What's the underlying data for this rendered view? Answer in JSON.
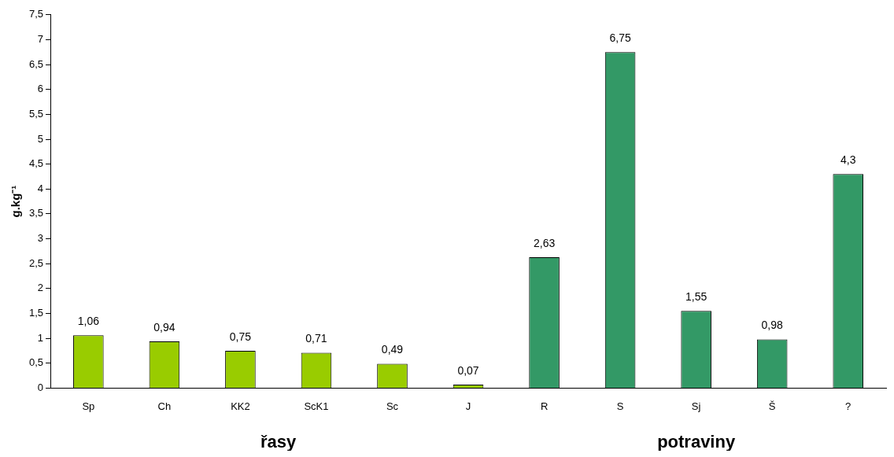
{
  "chart_data": {
    "type": "bar",
    "ylabel": "g.kg⁻¹",
    "categories": [
      "Sp",
      "Ch",
      "KK2",
      "ScK1",
      "Sc",
      "J",
      "R",
      "S",
      "Sj",
      "Š",
      "?"
    ],
    "values": [
      1.06,
      0.94,
      0.75,
      0.71,
      0.49,
      0.07,
      2.63,
      6.75,
      1.55,
      0.98,
      4.3
    ],
    "value_labels": [
      "1,06",
      "0,94",
      "0,75",
      "0,71",
      "0,49",
      "0,07",
      "2,63",
      "6,75",
      "1,55",
      "0,98",
      "4,3"
    ],
    "colors": [
      "#99cc00",
      "#99cc00",
      "#99cc00",
      "#99cc00",
      "#99cc00",
      "#99cc00",
      "#339966",
      "#339966",
      "#339966",
      "#339966",
      "#339966"
    ],
    "ylim": [
      0,
      7.5
    ],
    "yticks": [
      0,
      {
        "value": 0.5,
        "label": "0,5"
      },
      1,
      {
        "value": 1.5,
        "label": "1,5"
      },
      2,
      {
        "value": 2.5,
        "label": "2,5"
      },
      3,
      {
        "value": 3.5,
        "label": "3,5"
      },
      4,
      {
        "value": 4.5,
        "label": "4,5"
      },
      5,
      {
        "value": 5.5,
        "label": "5,5"
      },
      6,
      {
        "value": 6.5,
        "label": "6,5"
      },
      7,
      {
        "value": 7.5,
        "label": "7,5"
      }
    ],
    "annotations": [
      "řasy",
      "potraviny"
    ],
    "grid": false,
    "legend": false
  }
}
